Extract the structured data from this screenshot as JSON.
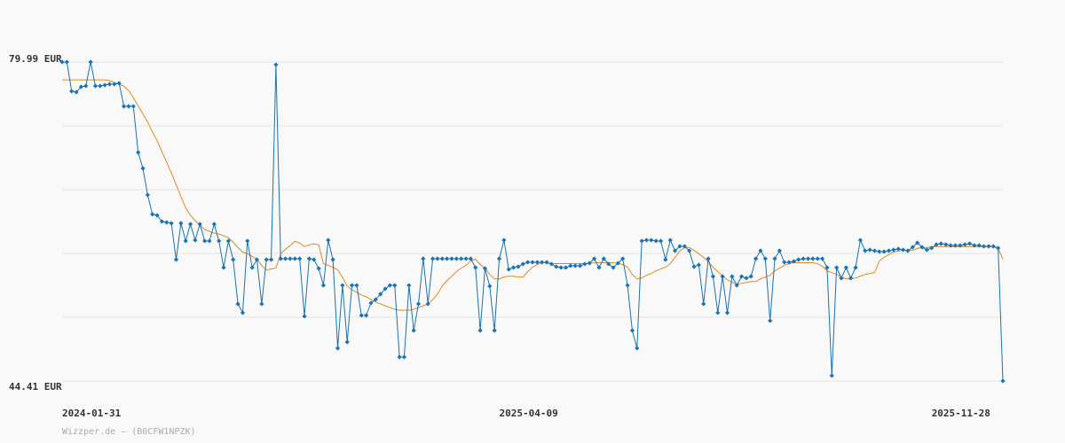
{
  "chart_data": {
    "type": "line",
    "ylim": [
      44.41,
      79.99
    ],
    "yticks": [
      {
        "value": 79.99,
        "label": "79.99 EUR"
      },
      {
        "value": 44.41,
        "label": "44.41 EUR"
      }
    ],
    "grid_lines": [
      79.99,
      72.874,
      65.758,
      58.642,
      51.526,
      44.41
    ],
    "xlim": [
      0,
      198
    ],
    "xticks": [
      {
        "value": 0,
        "label": "2024-01-31"
      },
      {
        "value": 92,
        "label": "2025-04-09"
      },
      {
        "value": 183,
        "label": "2025-11-28"
      }
    ],
    "source": "Wizzper.de – (B0CFW1NPZK)",
    "series": [
      {
        "color": "#1a73b3",
        "markers": true,
        "values": [
          79.99,
          79.99,
          76.73,
          76.63,
          77.22,
          77.32,
          79.99,
          77.32,
          77.32,
          77.42,
          77.52,
          77.52,
          77.62,
          75.05,
          75.05,
          75.05,
          69.91,
          68.13,
          65.17,
          63.0,
          62.89,
          62.2,
          62.1,
          62.0,
          57.95,
          62.0,
          60.03,
          61.9,
          60.12,
          61.9,
          60.03,
          60.03,
          61.9,
          60.03,
          57.06,
          60.03,
          57.95,
          53.01,
          52.02,
          60.03,
          57.06,
          57.95,
          53.01,
          57.95,
          57.95,
          79.69,
          58.05,
          58.05,
          58.05,
          58.05,
          58.05,
          51.63,
          58.05,
          57.95,
          56.96,
          55.08,
          60.12,
          57.95,
          48.07,
          55.08,
          48.76,
          55.08,
          55.08,
          51.72,
          51.72,
          53.11,
          53.5,
          54.1,
          54.69,
          55.08,
          55.08,
          47.08,
          47.08,
          55.08,
          50.04,
          53.01,
          58.05,
          53.01,
          58.05,
          58.05,
          58.05,
          58.05,
          58.05,
          58.05,
          58.05,
          58.05,
          58.05,
          57.06,
          50.04,
          56.96,
          54.99,
          50.04,
          58.05,
          60.12,
          56.86,
          57.06,
          57.16,
          57.46,
          57.65,
          57.65,
          57.65,
          57.65,
          57.65,
          57.46,
          57.16,
          57.06,
          57.06,
          57.26,
          57.26,
          57.26,
          57.46,
          57.55,
          58.05,
          57.06,
          58.05,
          57.46,
          57.06,
          57.55,
          58.05,
          55.08,
          50.04,
          48.07,
          60.03,
          60.12,
          60.12,
          60.03,
          60.03,
          57.95,
          60.12,
          58.94,
          59.43,
          59.43,
          58.94,
          57.16,
          57.36,
          53.01,
          58.05,
          56.07,
          52.02,
          56.07,
          52.02,
          56.07,
          55.08,
          56.07,
          55.88,
          56.07,
          58.05,
          58.94,
          58.05,
          51.13,
          58.05,
          58.94,
          57.65,
          57.65,
          57.75,
          57.95,
          58.05,
          58.05,
          58.05,
          58.05,
          58.05,
          57.06,
          45.0,
          57.06,
          55.88,
          57.06,
          55.88,
          57.06,
          60.12,
          58.94,
          59.04,
          58.94,
          58.84,
          58.84,
          58.94,
          59.04,
          59.14,
          59.04,
          58.94,
          59.33,
          59.83,
          59.33,
          59.04,
          59.24,
          59.63,
          59.73,
          59.63,
          59.53,
          59.53,
          59.53,
          59.63,
          59.73,
          59.53,
          59.53,
          59.43,
          59.43,
          59.43,
          59.24,
          44.41
        ]
      },
      {
        "color": "#e08a1e",
        "markers": false,
        "values": [
          78.0,
          78.0,
          78.0,
          78.0,
          78.0,
          78.0,
          78.0,
          78.0,
          78.0,
          78.0,
          77.9,
          77.7,
          77.5,
          77.3,
          76.8,
          76.0,
          75.1,
          74.2,
          73.3,
          72.2,
          71.2,
          70.0,
          68.8,
          67.6,
          66.3,
          65.0,
          63.7,
          62.9,
          62.3,
          61.8,
          61.3,
          61.1,
          60.9,
          60.8,
          60.6,
          60.4,
          59.9,
          59.3,
          58.8,
          58.6,
          58.3,
          58.0,
          57.3,
          56.8,
          56.9,
          57.0,
          58.6,
          59.1,
          59.5,
          60.0,
          59.8,
          59.4,
          59.6,
          59.7,
          59.6,
          57.5,
          57.3,
          57.1,
          56.8,
          56.0,
          55.0,
          54.6,
          54.3,
          54.0,
          53.8,
          53.5,
          53.2,
          53.0,
          52.8,
          52.6,
          52.4,
          52.3,
          52.3,
          52.3,
          52.4,
          52.6,
          52.8,
          53.0,
          53.5,
          54.1,
          55.0,
          55.6,
          56.1,
          56.6,
          57.0,
          57.3,
          57.8,
          58.0,
          57.4,
          57.0,
          56.3,
          55.8,
          55.8,
          56.0,
          56.1,
          56.1,
          56.0,
          56.0,
          56.6,
          57.1,
          57.4,
          57.6,
          57.6,
          57.5,
          57.5,
          57.5,
          57.5,
          57.5,
          57.5,
          57.5,
          57.5,
          57.5,
          57.6,
          57.6,
          57.6,
          57.6,
          57.6,
          57.5,
          57.4,
          57.1,
          56.3,
          55.8,
          55.9,
          56.2,
          56.4,
          56.7,
          56.9,
          57.1,
          57.5,
          58.2,
          58.9,
          59.3,
          59.3,
          59.0,
          58.6,
          58.2,
          57.7,
          57.1,
          56.6,
          56.1,
          55.7,
          55.4,
          55.2,
          55.3,
          55.4,
          55.5,
          55.5,
          55.8,
          56.0,
          56.2,
          56.7,
          57.0,
          57.3,
          57.5,
          57.6,
          57.6,
          57.6,
          57.6,
          57.6,
          57.5,
          57.2,
          56.7,
          56.5,
          56.3,
          56.0,
          55.8,
          55.8,
          55.9,
          56.1,
          56.3,
          56.4,
          56.5,
          57.8,
          58.2,
          58.5,
          58.8,
          58.9,
          59.0,
          59.0,
          59.0,
          59.2,
          59.3,
          59.3,
          59.4,
          59.4,
          59.4,
          59.4,
          59.4,
          59.4,
          59.4,
          59.4,
          59.4,
          59.4,
          59.4,
          59.4,
          59.4,
          59.4,
          59.2,
          58.0
        ]
      }
    ]
  }
}
